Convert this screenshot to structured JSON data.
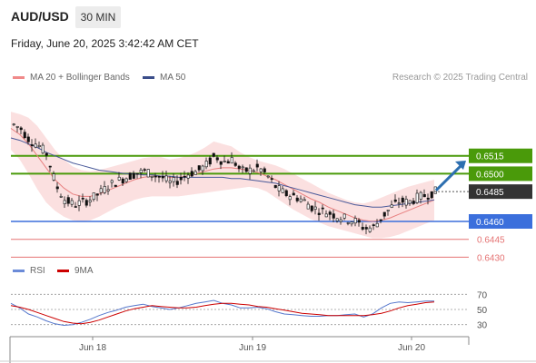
{
  "header": {
    "symbol": "AUD/USD",
    "timeframe": "30 MIN",
    "datetime": "Friday, June 20, 2025 3:42:42 AM CET"
  },
  "legend": {
    "ma_label": "MA 20 + Bollinger Bands",
    "ma50_label": "MA 50",
    "credit": "Research © 2025 Trading Central",
    "rsi_label": "RSI",
    "rsi_ma_label": "9MA"
  },
  "colors": {
    "resistance": "#4a9a0a",
    "support_blue": "#3b6fdc",
    "support_red": "#e57373",
    "band_fill": "#fbe0e0",
    "ma20": "#e88080",
    "ma50": "#4a5a9a",
    "candle": "#111111",
    "rsi": "#5577cc",
    "rsi_ma": "#cc0000",
    "arrow": "#2d6fb0"
  },
  "chart_data": [
    {
      "type": "candlestick",
      "x_ticks": [
        "Jun 18",
        "Jun 19",
        "Jun 20"
      ],
      "ylim": [
        0.6425,
        0.6565
      ],
      "levels": [
        {
          "value": 0.6515,
          "label": "0.6515",
          "kind": "resistance"
        },
        {
          "value": 0.65,
          "label": "0.6500",
          "kind": "resistance"
        },
        {
          "value": 0.646,
          "label": "0.6460",
          "kind": "support"
        },
        {
          "value": 0.6445,
          "label": "0.6445",
          "kind": "support-minor"
        },
        {
          "value": 0.643,
          "label": "0.6430",
          "kind": "support-minor"
        }
      ],
      "last_price": {
        "value": 0.6485,
        "label": "0.6485"
      },
      "close_path": [
        0.6542,
        0.6538,
        0.6528,
        0.6524,
        0.6516,
        0.649,
        0.6478,
        0.6474,
        0.6476,
        0.6479,
        0.6484,
        0.649,
        0.6494,
        0.6497,
        0.65,
        0.6502,
        0.6499,
        0.6497,
        0.6492,
        0.6495,
        0.65,
        0.6502,
        0.6507,
        0.6515,
        0.651,
        0.6512,
        0.6502,
        0.6503,
        0.6505,
        0.6498,
        0.6488,
        0.6483,
        0.6481,
        0.6478,
        0.6472,
        0.6469,
        0.6467,
        0.6464,
        0.6462,
        0.646,
        0.6454,
        0.6455,
        0.6464,
        0.6472,
        0.6477,
        0.6476,
        0.648,
        0.6482,
        0.6485
      ],
      "ma20": [
        0.6538,
        0.6533,
        0.6525,
        0.6515,
        0.6505,
        0.6495,
        0.6488,
        0.6483,
        0.6481,
        0.6481,
        0.6483,
        0.6486,
        0.6489,
        0.6492,
        0.6495,
        0.6497,
        0.6498,
        0.6498,
        0.6497,
        0.6497,
        0.6498,
        0.65,
        0.6502,
        0.6504,
        0.6505,
        0.6505,
        0.6504,
        0.6503,
        0.6501,
        0.6498,
        0.6495,
        0.6491,
        0.6487,
        0.6483,
        0.6479,
        0.6476,
        0.6472,
        0.6469,
        0.6466,
        0.6463,
        0.6461,
        0.646,
        0.6461,
        0.6463,
        0.6466,
        0.6469,
        0.6472,
        0.6475,
        0.6478
      ],
      "ma50": [
        0.653,
        0.6528,
        0.6525,
        0.6522,
        0.6518,
        0.6515,
        0.6512,
        0.6509,
        0.6507,
        0.6505,
        0.6503,
        0.6502,
        0.6501,
        0.65,
        0.65,
        0.6499,
        0.6499,
        0.6498,
        0.6498,
        0.6497,
        0.6497,
        0.6497,
        0.6497,
        0.6497,
        0.6497,
        0.6496,
        0.6496,
        0.6495,
        0.6494,
        0.6493,
        0.6492,
        0.649,
        0.6488,
        0.6486,
        0.6484,
        0.6482,
        0.648,
        0.6478,
        0.6476,
        0.6474,
        0.6473,
        0.6472,
        0.6472,
        0.6473,
        0.6474,
        0.6475,
        0.6476,
        0.6477,
        0.6478
      ],
      "bb_upper": [
        0.6552,
        0.655,
        0.6547,
        0.654,
        0.653,
        0.652,
        0.6512,
        0.6506,
        0.6503,
        0.6502,
        0.6503,
        0.6505,
        0.6507,
        0.6509,
        0.6511,
        0.6513,
        0.6514,
        0.6514,
        0.6512,
        0.6513,
        0.6515,
        0.6518,
        0.6522,
        0.6527,
        0.6525,
        0.6523,
        0.6518,
        0.6514,
        0.6511,
        0.6509,
        0.6507,
        0.6504,
        0.65,
        0.6496,
        0.6492,
        0.6488,
        0.6484,
        0.6481,
        0.6478,
        0.6476,
        0.6475,
        0.6477,
        0.648,
        0.6483,
        0.6486,
        0.6489,
        0.6491,
        0.6493,
        0.6495
      ],
      "bb_lower": [
        0.652,
        0.6512,
        0.65,
        0.6487,
        0.6476,
        0.6469,
        0.6464,
        0.6461,
        0.646,
        0.6461,
        0.6464,
        0.6468,
        0.6472,
        0.6475,
        0.6478,
        0.648,
        0.6481,
        0.6481,
        0.6481,
        0.6481,
        0.6482,
        0.6483,
        0.6484,
        0.6485,
        0.6486,
        0.6487,
        0.6488,
        0.6489,
        0.6488,
        0.6485,
        0.648,
        0.6475,
        0.647,
        0.6466,
        0.6462,
        0.6459,
        0.6456,
        0.6454,
        0.6452,
        0.645,
        0.6448,
        0.6446,
        0.6446,
        0.6447,
        0.6449,
        0.6452,
        0.6455,
        0.6458,
        0.6461
      ],
      "forecast_arrow": {
        "from": 0.6486,
        "to": 0.6511
      }
    },
    {
      "type": "line",
      "name": "RSI",
      "ylim": [
        20,
        80
      ],
      "y_ticks": [
        70,
        50,
        30
      ],
      "rsi": [
        58,
        52,
        44,
        40,
        35,
        31,
        29,
        30,
        33,
        37,
        42,
        46,
        49,
        53,
        55,
        57,
        54,
        52,
        50,
        52,
        55,
        58,
        60,
        62,
        58,
        56,
        52,
        52,
        53,
        51,
        47,
        44,
        43,
        42,
        41,
        41,
        42,
        42,
        43,
        44,
        40,
        44,
        52,
        58,
        60,
        59,
        60,
        61,
        61
      ],
      "rsi_ma": [
        55,
        53,
        50,
        46,
        42,
        38,
        34,
        32,
        31,
        33,
        36,
        40,
        44,
        48,
        51,
        53,
        55,
        54,
        53,
        52,
        52,
        53,
        55,
        57,
        58,
        58,
        57,
        56,
        54,
        53,
        51,
        49,
        47,
        45,
        44,
        43,
        42,
        42,
        42,
        42,
        42,
        43,
        45,
        48,
        52,
        55,
        57,
        59,
        60
      ]
    }
  ]
}
